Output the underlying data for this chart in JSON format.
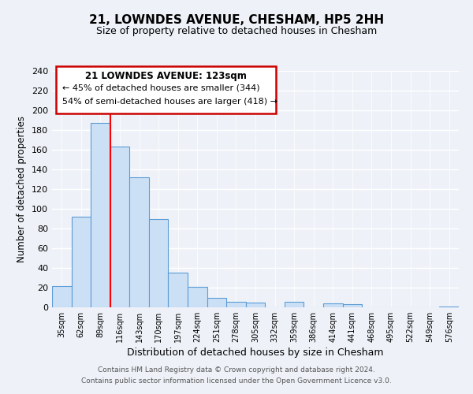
{
  "title": "21, LOWNDES AVENUE, CHESHAM, HP5 2HH",
  "subtitle": "Size of property relative to detached houses in Chesham",
  "xlabel": "Distribution of detached houses by size in Chesham",
  "ylabel": "Number of detached properties",
  "bar_labels": [
    "35sqm",
    "62sqm",
    "89sqm",
    "116sqm",
    "143sqm",
    "170sqm",
    "197sqm",
    "224sqm",
    "251sqm",
    "278sqm",
    "305sqm",
    "332sqm",
    "359sqm",
    "386sqm",
    "414sqm",
    "441sqm",
    "468sqm",
    "495sqm",
    "522sqm",
    "549sqm",
    "576sqm"
  ],
  "bar_values": [
    22,
    92,
    187,
    163,
    132,
    90,
    35,
    21,
    10,
    6,
    5,
    0,
    6,
    0,
    4,
    3,
    0,
    0,
    0,
    0,
    1
  ],
  "bar_color": "#cce0f5",
  "bar_edge_color": "#5b9bd5",
  "vline_color": "red",
  "vline_x_index": 3,
  "ylim": [
    0,
    240
  ],
  "yticks": [
    0,
    20,
    40,
    60,
    80,
    100,
    120,
    140,
    160,
    180,
    200,
    220,
    240
  ],
  "annotation_box_text_line1": "21 LOWNDES AVENUE: 123sqm",
  "annotation_box_text_line2": "← 45% of detached houses are smaller (344)",
  "annotation_box_text_line3": "54% of semi-detached houses are larger (418) →",
  "annotation_box_edge_color": "#cc0000",
  "footer_line1": "Contains HM Land Registry data © Crown copyright and database right 2024.",
  "footer_line2": "Contains public sector information licensed under the Open Government Licence v3.0.",
  "background_color": "#eef2f8"
}
